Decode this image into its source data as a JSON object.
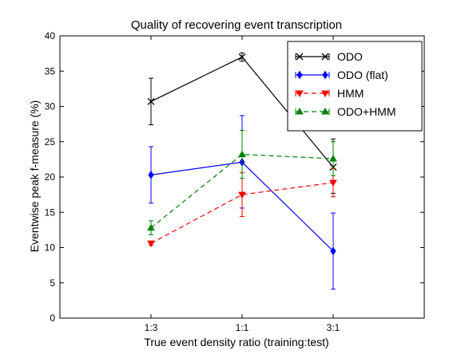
{
  "chart_data": {
    "type": "line",
    "title": "Quality of recovering event transcription",
    "xlabel": "True event density ratio (training:test)",
    "ylabel": "Eventwise peak f-measure (%)",
    "categories": [
      "1:3",
      "1:1",
      "3:1"
    ],
    "ylim": [
      0,
      40
    ],
    "yticks": [
      0,
      5,
      10,
      15,
      20,
      25,
      30,
      35,
      40
    ],
    "grid": false,
    "legend_position": "top-right",
    "series": [
      {
        "name": "ODO",
        "color": "#000000",
        "marker": "x",
        "line_style": "solid",
        "values": [
          30.7,
          37.0,
          21.4
        ],
        "err_low": [
          27.4,
          36.4,
          17.7
        ],
        "err_high": [
          34.0,
          37.6,
          25.4
        ]
      },
      {
        "name": "ODO (flat)",
        "color": "#0000ff",
        "marker": "diamond",
        "line_style": "solid",
        "values": [
          20.3,
          22.1,
          9.5
        ],
        "err_low": [
          16.3,
          15.6,
          4.1
        ],
        "err_high": [
          24.3,
          28.7,
          14.9
        ]
      },
      {
        "name": "HMM",
        "color": "#ff0000",
        "marker": "triangle-down",
        "line_style": "dashed",
        "values": [
          10.6,
          17.5,
          19.2
        ],
        "err_low": [
          10.3,
          14.4,
          17.2
        ],
        "err_high": [
          10.9,
          20.6,
          21.2
        ]
      },
      {
        "name": "ODO+HMM",
        "color": "#008000",
        "marker": "triangle-up",
        "line_style": "dashed",
        "values": [
          12.8,
          23.2,
          22.6
        ],
        "err_low": [
          11.8,
          19.8,
          20.2
        ],
        "err_high": [
          13.8,
          26.6,
          25.0
        ]
      }
    ]
  }
}
